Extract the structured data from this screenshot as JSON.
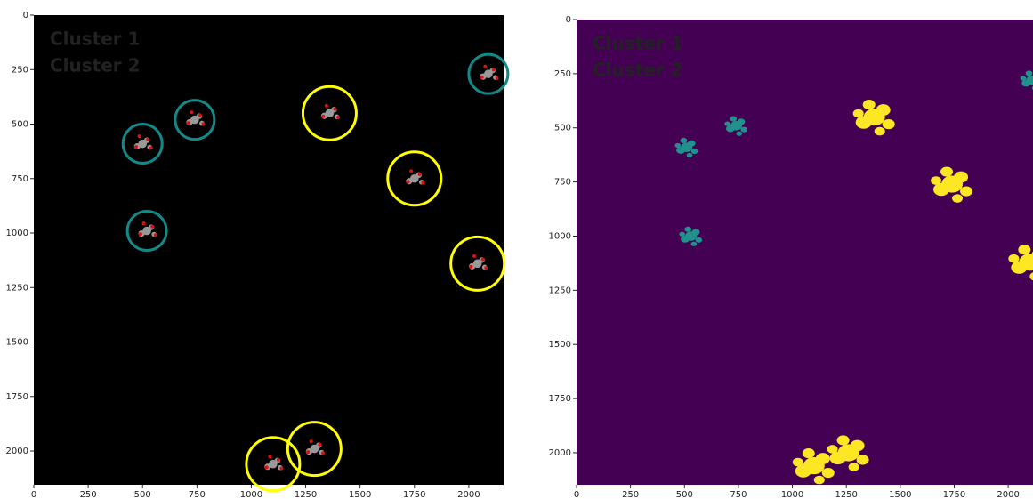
{
  "chart_data": [
    {
      "type": "image",
      "background": "#000000",
      "marker": "ring",
      "xlim": [
        0,
        2160
      ],
      "ylim": [
        2155,
        0
      ],
      "xticks": [
        0,
        250,
        500,
        750,
        1000,
        1250,
        1500,
        1750,
        2000
      ],
      "yticks": [
        0,
        250,
        500,
        750,
        1000,
        1250,
        1500,
        1750,
        2000
      ],
      "series": [
        {
          "name": "Cluster 1",
          "color": "#138a8a",
          "x": [
            2090,
            740,
            500,
            520
          ],
          "y": [
            270,
            480,
            590,
            990
          ]
        },
        {
          "name": "Cluster 2",
          "color": "#ffff00",
          "x": [
            1360,
            1750,
            2040,
            1100,
            1290
          ],
          "y": [
            450,
            750,
            1140,
            2060,
            1990
          ]
        }
      ]
    },
    {
      "type": "image",
      "background": "#440154",
      "marker": "blob",
      "xlim": [
        0,
        2115
      ],
      "ylim": [
        2148,
        0
      ],
      "xticks": [
        0,
        250,
        500,
        750,
        1000,
        1250,
        1500,
        1750,
        2000
      ],
      "yticks": [
        0,
        250,
        500,
        750,
        1000,
        1250,
        1500,
        1750,
        2000
      ],
      "series": [
        {
          "name": "Cluster 1",
          "color": "#21918c",
          "x": [
            2110,
            740,
            510,
            530
          ],
          "y": [
            280,
            490,
            590,
            1000
          ]
        },
        {
          "name": "Cluster 2",
          "color": "#fde725",
          "x": [
            1380,
            1740,
            2100,
            1100,
            1260
          ],
          "y": [
            450,
            760,
            1120,
            2060,
            2000
          ]
        }
      ]
    }
  ]
}
